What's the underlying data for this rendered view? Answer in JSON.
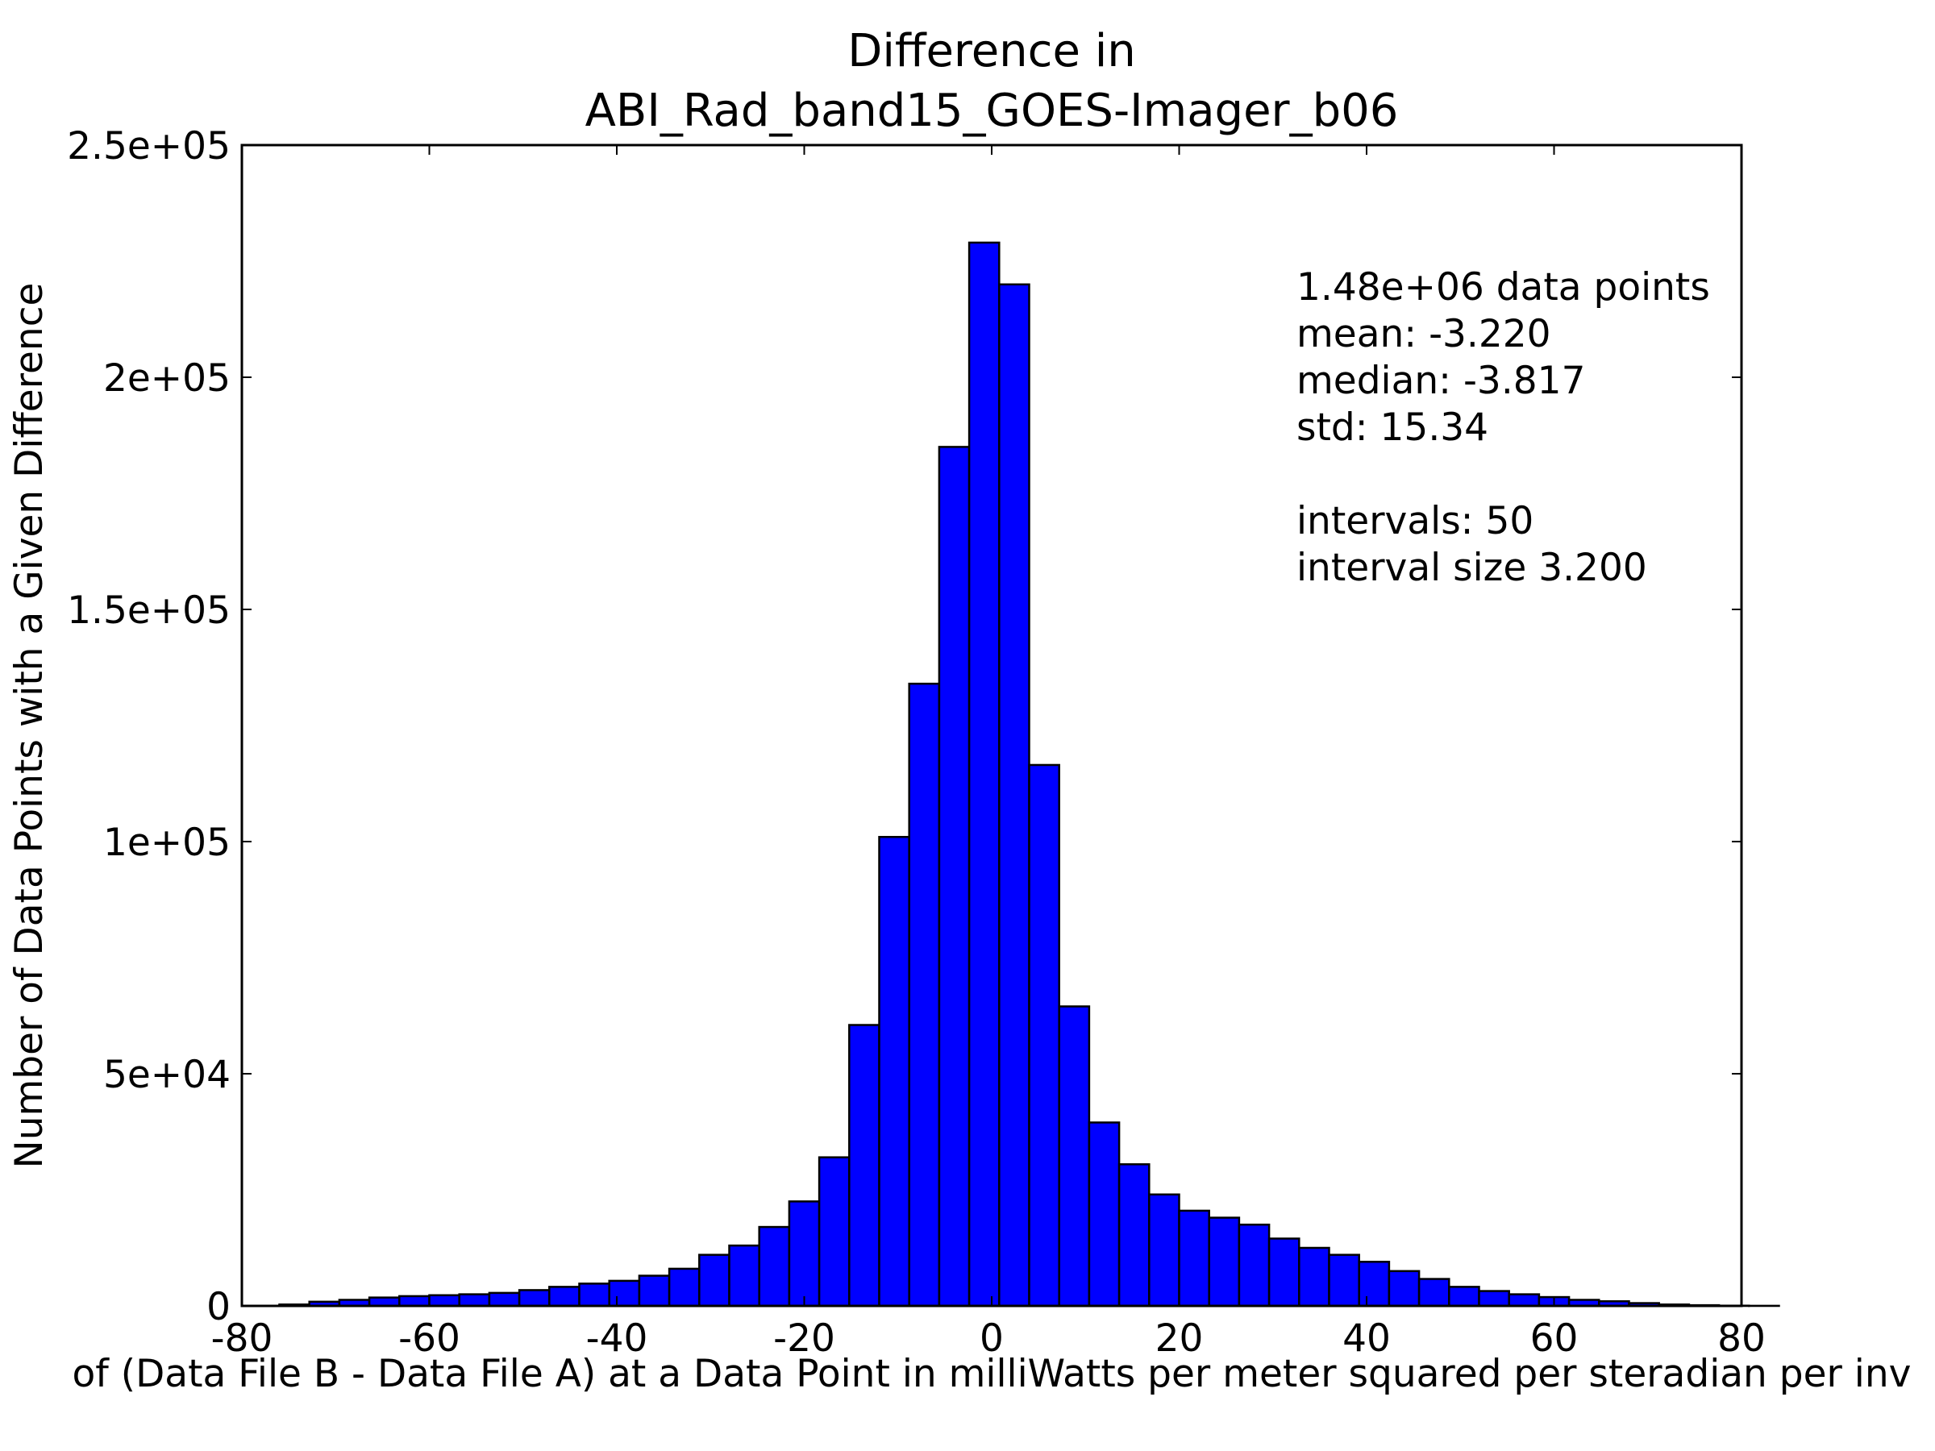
{
  "chart_data": {
    "type": "bar",
    "title": [
      "Difference in",
      "ABI_Rad_band15_GOES-Imager_b06"
    ],
    "xlabel": "of (Data File B - Data File A) at a Data Point in milliWatts per meter squared per steradian per inv",
    "ylabel": "Number of Data Points with a Given Difference",
    "xlim": [
      -80,
      80
    ],
    "ylim": [
      0,
      250000
    ],
    "x_ticks": [
      -80,
      -60,
      -40,
      -20,
      0,
      20,
      40,
      60,
      80
    ],
    "x_tick_labels": [
      "-80",
      "-60",
      "-40",
      "-20",
      "0",
      "20",
      "40",
      "60",
      "80"
    ],
    "y_ticks": [
      0,
      50000,
      100000,
      150000,
      200000,
      250000
    ],
    "y_tick_labels": [
      "0",
      "5e+04",
      "1e+05",
      "1.5e+05",
      "2e+05",
      "2.5e+05"
    ],
    "bin_start": -76.0,
    "bin_width": 3.2,
    "values": [
      300,
      900,
      1300,
      1800,
      2100,
      2300,
      2500,
      2800,
      3400,
      4100,
      4800,
      5400,
      6500,
      8000,
      11000,
      13000,
      17000,
      22500,
      32000,
      60500,
      101000,
      134000,
      185000,
      229000,
      220000,
      116500,
      64500,
      39500,
      30500,
      24000,
      20500,
      19000,
      17500,
      14500,
      12500,
      11000,
      9500,
      7500,
      5800,
      4100,
      3200,
      2500,
      1900,
      1300,
      1000,
      600,
      300,
      150,
      50,
      20
    ],
    "bar_color": "#0000ff",
    "grid": false,
    "stats_lines": [
      "1.48e+06 data points",
      "mean: -3.220",
      "median: -3.817",
      "std: 15.34",
      "",
      "intervals: 50",
      "interval size 3.200"
    ]
  }
}
